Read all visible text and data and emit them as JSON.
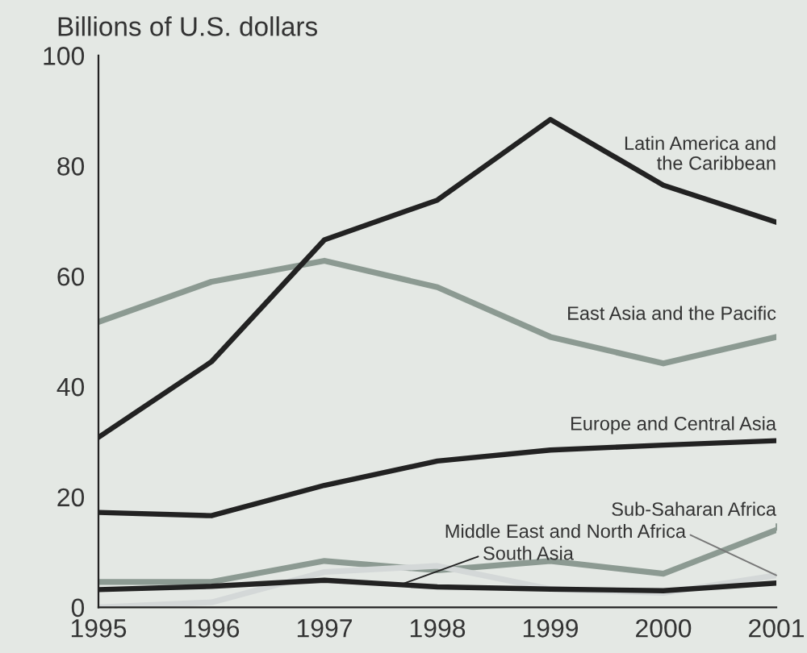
{
  "chart_data": {
    "type": "line",
    "ylabel": "Billions of U.S. dollars",
    "categories": [
      "1995",
      "1996",
      "1997",
      "1998",
      "1999",
      "2000",
      "2001"
    ],
    "ylim": [
      0,
      100
    ],
    "yticks": [
      0,
      20,
      40,
      60,
      80,
      100
    ],
    "grid": false,
    "legend": false,
    "marker": "none",
    "line_style": "solid",
    "series": [
      {
        "name": "Latin America and the Caribbean",
        "color": "#222222",
        "values": [
          30.8,
          44.5,
          66.6,
          73.8,
          88.4,
          76.5,
          69.8
        ]
      },
      {
        "name": "East Asia and the Pacific",
        "color": "#8c9a92",
        "values": [
          51.7,
          59,
          62.8,
          58,
          49,
          44.2,
          49
        ]
      },
      {
        "name": "Europe and Central Asia",
        "color": "#222222",
        "values": [
          17.2,
          16.6,
          22.1,
          26.5,
          28.5,
          29.4,
          30.2
        ]
      },
      {
        "name": "Sub-Saharan Africa",
        "color": "#8c9a92",
        "values": [
          4.6,
          4.6,
          8.4,
          6.7,
          8.4,
          6.1,
          14
        ]
      },
      {
        "name": "Middle East and North Africa",
        "color": "#d4d8d8",
        "values": [
          0,
          0.9,
          6.4,
          7.5,
          3.3,
          2.6,
          5.8
        ]
      },
      {
        "name": "South Asia",
        "color": "#222222",
        "values": [
          3.2,
          3.8,
          4.9,
          3.7,
          3.3,
          3.0,
          4.4
        ]
      }
    ]
  }
}
